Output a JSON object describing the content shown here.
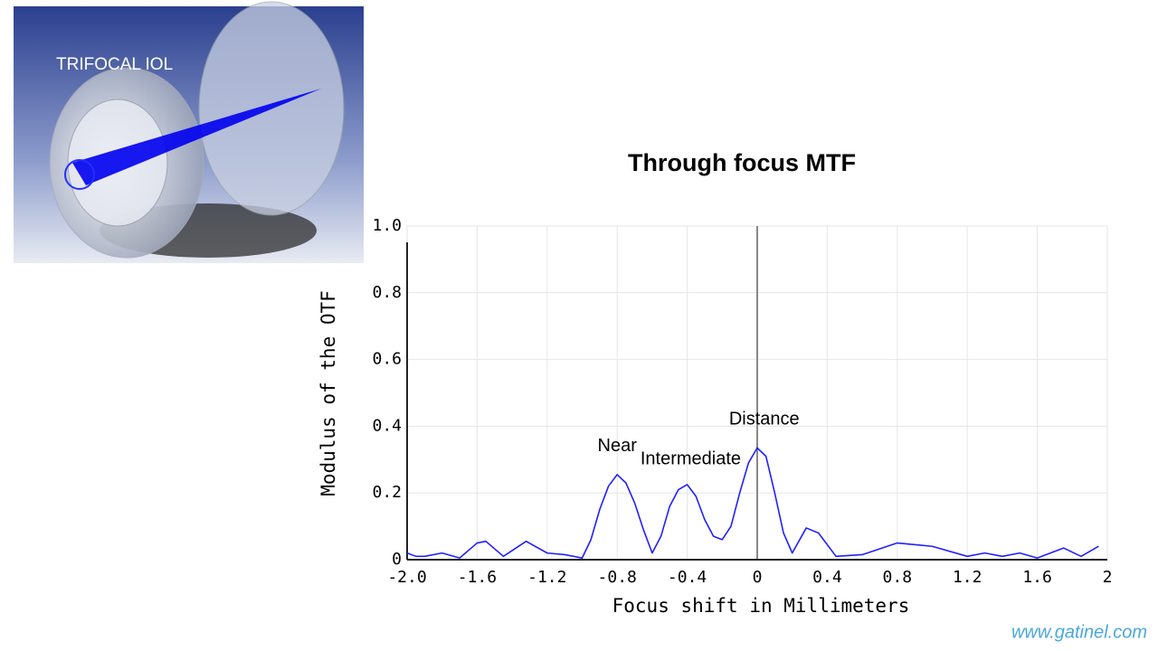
{
  "slide": {
    "image_label": "TRIFOCAL IOL",
    "footer": "www.gatinel.com"
  },
  "chart_data": {
    "type": "line",
    "title": "Through focus MTF",
    "x_label": "Focus shift in Millimeters",
    "y_label": "Modulus of the OTF",
    "xlim": [
      -2,
      2
    ],
    "ylim": [
      0,
      1
    ],
    "xticks": [
      {
        "value": -2,
        "label": "-2.0"
      },
      -1.6,
      -1.2,
      -0.8,
      -0.4,
      0,
      0.4,
      0.8,
      1.2,
      1.6,
      2
    ],
    "yticks": [
      0,
      0.2,
      0.4,
      0.6,
      0.8,
      {
        "value": 1,
        "label": "1.0"
      }
    ],
    "grid": true,
    "annotations": [
      {
        "text": "Near",
        "x": -0.8,
        "y": 0.34
      },
      {
        "text": "Intermediate",
        "x": -0.38,
        "y": 0.3
      },
      {
        "text": "Distance",
        "x": 0.04,
        "y": 0.42
      }
    ],
    "series": [
      {
        "name": "MTF",
        "color": "#2020ff",
        "x": [
          -2.0,
          -1.95,
          -1.9,
          -1.8,
          -1.7,
          -1.6,
          -1.55,
          -1.45,
          -1.32,
          -1.2,
          -1.1,
          -1.0,
          -0.95,
          -0.9,
          -0.85,
          -0.8,
          -0.75,
          -0.7,
          -0.65,
          -0.6,
          -0.55,
          -0.5,
          -0.45,
          -0.4,
          -0.35,
          -0.3,
          -0.25,
          -0.2,
          -0.15,
          -0.1,
          -0.05,
          0,
          0.05,
          0.1,
          0.15,
          0.2,
          0.28,
          0.35,
          0.45,
          0.6,
          0.8,
          1.0,
          1.2,
          1.3,
          1.4,
          1.5,
          1.6,
          1.75,
          1.85,
          1.95
        ],
        "values": [
          0.02,
          0.01,
          0.01,
          0.02,
          0.005,
          0.05,
          0.055,
          0.01,
          0.055,
          0.02,
          0.015,
          0.005,
          0.06,
          0.15,
          0.22,
          0.255,
          0.23,
          0.17,
          0.09,
          0.02,
          0.07,
          0.16,
          0.21,
          0.225,
          0.19,
          0.12,
          0.07,
          0.06,
          0.1,
          0.2,
          0.29,
          0.335,
          0.31,
          0.2,
          0.08,
          0.02,
          0.095,
          0.08,
          0.01,
          0.015,
          0.05,
          0.04,
          0.01,
          0.02,
          0.01,
          0.02,
          0.005,
          0.035,
          0.01,
          0.04
        ]
      }
    ]
  }
}
